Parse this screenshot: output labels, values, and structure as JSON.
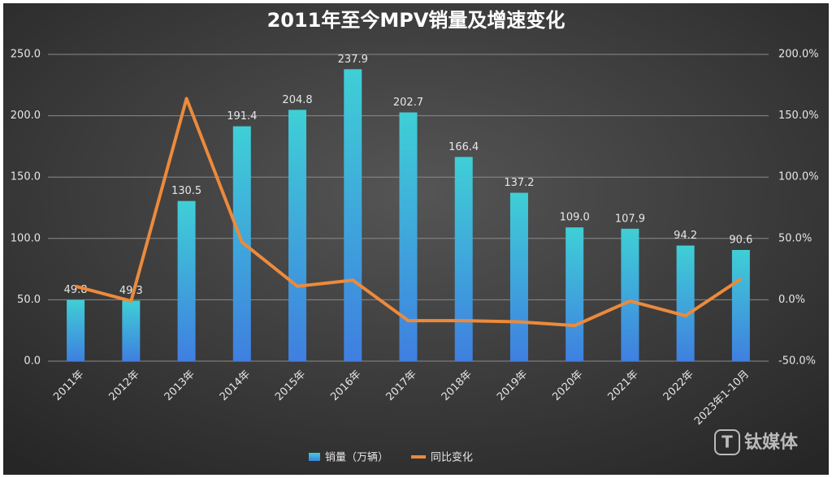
{
  "chart_data": {
    "type": "bar_line",
    "title": "2011年至今MPV销量及增速变化",
    "categories": [
      "2011年",
      "2012年",
      "2013年",
      "2014年",
      "2015年",
      "2016年",
      "2017年",
      "2018年",
      "2019年",
      "2020年",
      "2021年",
      "2022年",
      "2023年1-10月"
    ],
    "series": [
      {
        "name": "销量（万辆）",
        "color": "#3fcfd6",
        "color2": "#3f7fe0",
        "type": "bar",
        "values": [
          49.8,
          49.3,
          130.5,
          191.4,
          204.8,
          237.9,
          202.7,
          166.4,
          137.2,
          109.0,
          107.9,
          94.2,
          90.6
        ],
        "value_labels": [
          "49.8",
          "49.3",
          "130.5",
          "191.4",
          "204.8",
          "237.9",
          "202.7",
          "166.4",
          "137.2",
          "109.0",
          "107.9",
          "94.2",
          "90.6"
        ]
      },
      {
        "name": "同比变化",
        "color": "#ec8a3c",
        "type": "line",
        "axis": "y2",
        "values": [
          11,
          -1,
          164,
          47,
          11,
          16,
          -17,
          -17,
          -18,
          -21,
          -1,
          -13,
          17
        ]
      }
    ],
    "ylim": [
      0,
      250
    ],
    "yticks": [
      {
        "value": 0,
        "label": "0.0"
      },
      {
        "value": 50,
        "label": "50.0"
      },
      {
        "value": 100,
        "label": "100.0"
      },
      {
        "value": 150,
        "label": "150.0"
      },
      {
        "value": 200,
        "label": "200.0"
      },
      {
        "value": 250,
        "label": "250.0"
      }
    ],
    "y2lim": [
      -50,
      200
    ],
    "y2ticks": [
      {
        "value": -50,
        "label": "-50.0%"
      },
      {
        "value": 0,
        "label": "0.0%"
      },
      {
        "value": 50,
        "label": "50.0%"
      },
      {
        "value": 100,
        "label": "100.0%"
      },
      {
        "value": 150,
        "label": "150.0%"
      },
      {
        "value": 200,
        "label": "200.0%"
      }
    ],
    "grid": true,
    "legend": "bottom",
    "watermark": "钛媒体"
  }
}
